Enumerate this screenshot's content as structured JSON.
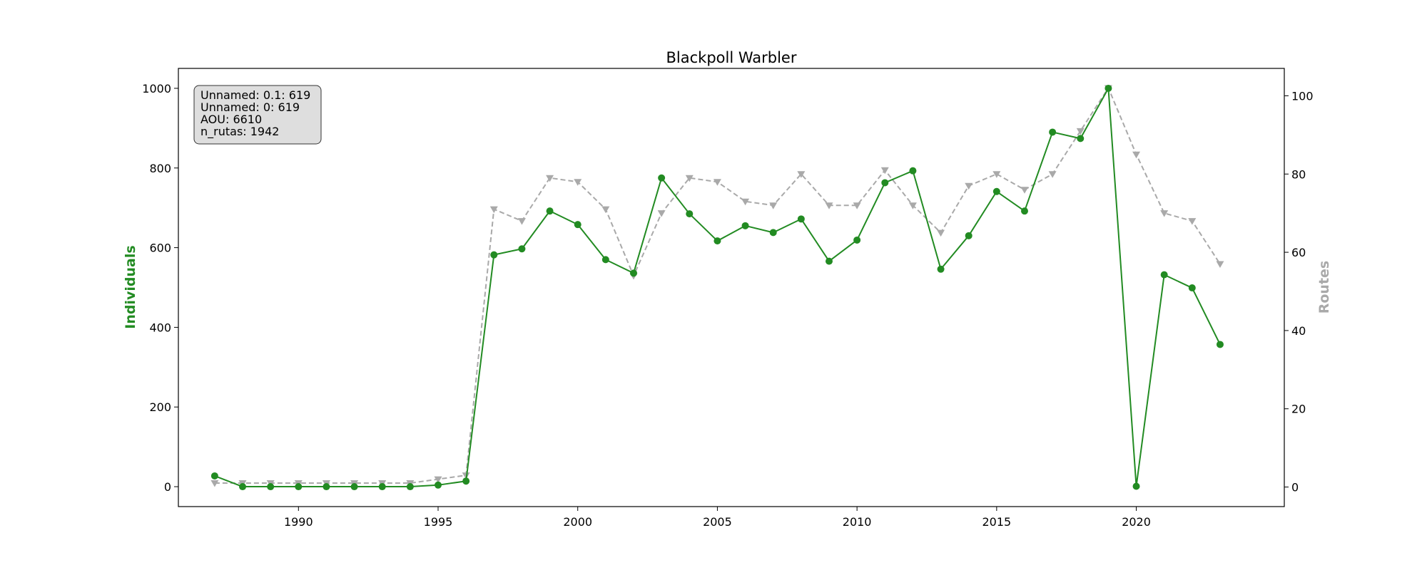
{
  "chart_data": {
    "type": "line",
    "title": "Blackpoll Warbler",
    "xlabel": "",
    "ylabel_left": "Individuals",
    "ylabel_right": "Routes",
    "x": [
      1987,
      1988,
      1989,
      1990,
      1991,
      1992,
      1993,
      1994,
      1995,
      1996,
      1997,
      1998,
      1999,
      2000,
      2001,
      2002,
      2003,
      2004,
      2005,
      2006,
      2007,
      2008,
      2009,
      2010,
      2011,
      2012,
      2013,
      2014,
      2015,
      2016,
      2017,
      2018,
      2019,
      2020,
      2021,
      2022,
      2023
    ],
    "xlim": [
      1985.7,
      2025.3
    ],
    "x_ticks": [
      1990,
      1995,
      2000,
      2005,
      2010,
      2015,
      2020
    ],
    "ylim_left": [
      -50,
      1050
    ],
    "y_ticks_left": [
      0,
      200,
      400,
      600,
      800,
      1000
    ],
    "ylim_right": [
      -5,
      107
    ],
    "y_ticks_right": [
      0,
      20,
      40,
      60,
      80,
      100
    ],
    "series": [
      {
        "name": "Individuals",
        "axis": "left",
        "color": "#228B22",
        "marker": "circle",
        "linestyle": "solid",
        "values": [
          27,
          0,
          0,
          0,
          0,
          0,
          0,
          0,
          4,
          14,
          582,
          597,
          692,
          658,
          570,
          536,
          775,
          685,
          617,
          655,
          638,
          672,
          566,
          619,
          763,
          793,
          546,
          630,
          741,
          692,
          890,
          874,
          1000,
          1,
          532,
          499,
          357
        ]
      },
      {
        "name": "Routes",
        "axis": "right",
        "color": "#A9A9A9",
        "marker": "triangle-down",
        "linestyle": "dashed",
        "values": [
          1,
          1,
          1,
          1,
          1,
          1,
          1,
          1,
          2,
          3,
          71,
          68,
          79,
          78,
          71,
          54,
          70,
          79,
          78,
          73,
          72,
          80,
          72,
          72,
          81,
          72,
          65,
          77,
          80,
          76,
          80,
          91,
          102,
          85,
          70,
          68,
          57
        ]
      }
    ],
    "info_box": [
      "Unnamed: 0.1: 619",
      "Unnamed: 0: 619",
      "AOU: 6610",
      "n_rutas: 1942"
    ],
    "grid": false
  }
}
